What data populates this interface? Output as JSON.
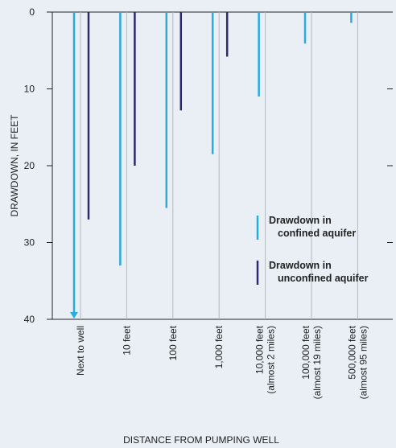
{
  "chart_data": {
    "type": "bar",
    "y_axis_label": "DRAWDOWN, IN FEET",
    "x_axis_label": "DISTANCE FROM PUMPING WELL",
    "categories": [
      "Next to well",
      "10 feet",
      "100 feet",
      "1,000 feet",
      "10,000 feet\n(almost 2 miles)",
      "100,000 feet\n(almost 19 miles)",
      "500,000 feet\n(almost 95 miles)"
    ],
    "series": [
      {
        "name": "Drawdown in\nconfined aquifer",
        "color": "#29aae1",
        "values": [
          40,
          33,
          25.5,
          18.5,
          11,
          4.1,
          1.4
        ]
      },
      {
        "name": "Drawdown in\nunconfined aquifer",
        "color": "#2e2a6e",
        "values": [
          27,
          20,
          12.8,
          5.8,
          null,
          null,
          null
        ]
      }
    ],
    "ylim": [
      0,
      40
    ],
    "yticks": [
      0,
      10,
      20,
      30,
      40
    ],
    "y_inverted": true,
    "grid": false
  }
}
